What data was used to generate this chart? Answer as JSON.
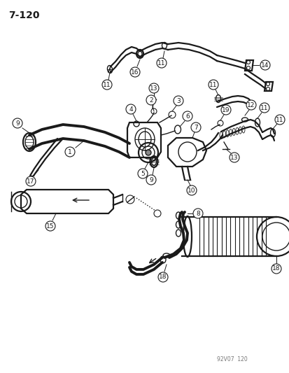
{
  "page_label": "7-120",
  "watermark": "92V07  120",
  "background_color": "#ffffff",
  "line_color": "#1a1a1a",
  "fig_width": 4.14,
  "fig_height": 5.33,
  "dpi": 100
}
